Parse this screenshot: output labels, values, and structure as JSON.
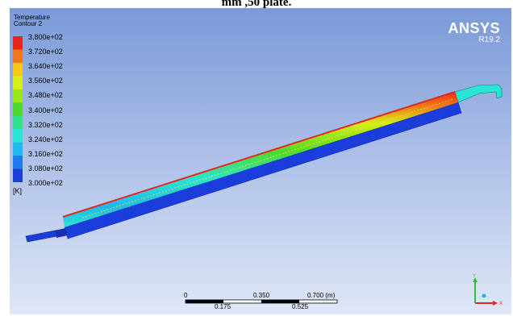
{
  "caption": "mm ,50 plate.",
  "legend": {
    "title_line1": "Temperature",
    "title_line2": "Contour 2",
    "ticks": [
      "3.800e+02",
      "3.720e+02",
      "3.640e+02",
      "3.560e+02",
      "3.480e+02",
      "3.400e+02",
      "3.320e+02",
      "3.240e+02",
      "3.160e+02",
      "3.080e+02",
      "3.000e+02"
    ],
    "unit": "[K]",
    "colors": [
      "#e8251b",
      "#f2761c",
      "#f7c81a",
      "#d6ef16",
      "#9be618",
      "#4fd92b",
      "#2fe08d",
      "#28e5d6",
      "#1fb8f0",
      "#1d7bec",
      "#1a3ddb"
    ]
  },
  "logo": {
    "name": "ANSYS",
    "version": "R19.2"
  },
  "scale_bar": {
    "top_labels": [
      "0",
      "0.350",
      "0.700 (m)"
    ],
    "bottom_labels": [
      "0.175",
      "0.525"
    ]
  },
  "axes_triad": {
    "y": "Y",
    "x": "X"
  }
}
